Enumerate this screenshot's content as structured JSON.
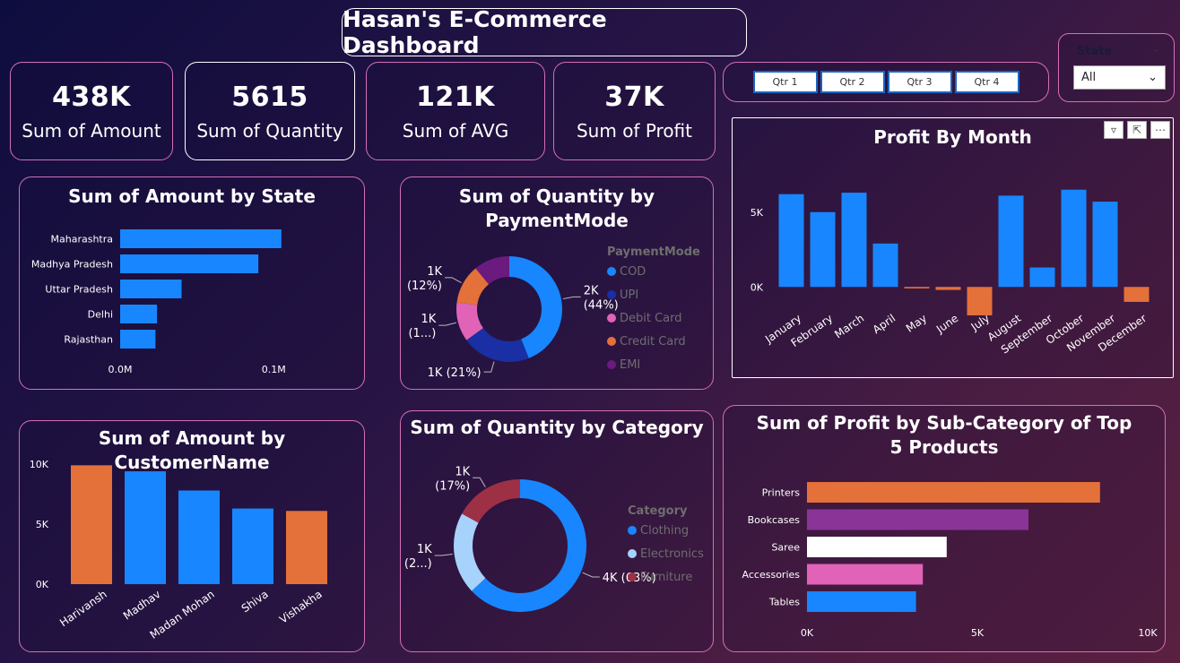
{
  "dashboard_title": "Hasan's E-Commerce Dashboard",
  "kpis": [
    {
      "value": "438K",
      "label": "Sum of Amount"
    },
    {
      "value": "5615",
      "label": "Sum of Quantity"
    },
    {
      "value": "121K",
      "label": "Sum of AVG"
    },
    {
      "value": "37K",
      "label": "Sum of Profit"
    }
  ],
  "quarters": [
    "Qtr 1",
    "Qtr 2",
    "Qtr 3",
    "Qtr 4"
  ],
  "state_slicer": {
    "label": "State",
    "selected": "All"
  },
  "colors": {
    "blue": "#1886ff",
    "orange": "#e4703a",
    "pink": "#e063b8",
    "dark_blue": "#1a2fa3",
    "purple": "#7a2b8f",
    "light_blue": "#a6d2fb",
    "dark_red": "#9e3045",
    "violet": "#8a3498",
    "white": "#ffffff"
  },
  "chart_data": [
    {
      "id": "amount_by_state",
      "type": "bar",
      "orientation": "horizontal",
      "title": "Sum of Amount by State",
      "categories": [
        "Maharashtra",
        "Madhya Pradesh",
        "Uttar Pradesh",
        "Delhi",
        "Rajasthan"
      ],
      "values": [
        0.105,
        0.09,
        0.04,
        0.024,
        0.023
      ],
      "xlim": [
        0,
        0.16
      ],
      "x_ticks": [
        {
          "v": 0,
          "label": "0.0M"
        },
        {
          "v": 0.1,
          "label": "0.1M"
        }
      ]
    },
    {
      "id": "quantity_by_paymentmode",
      "type": "pie",
      "donut": true,
      "title": "Sum of Quantity by PaymentMode",
      "legend_title": "PaymentMode",
      "labels": [
        "COD",
        "UPI",
        "Debit Card",
        "Credit Card",
        "EMI"
      ],
      "values": [
        44,
        21,
        12,
        12,
        11
      ],
      "colors": [
        "#1886ff",
        "#1a2fa3",
        "#e063b8",
        "#e4703a",
        "#6b1a80"
      ],
      "data_labels": [
        {
          "line1": "2K",
          "line2": "(44%)"
        },
        {
          "line1": "1K (21%)",
          "line2": ""
        },
        {
          "line1": "1K",
          "line2": "(1...)"
        },
        {
          "line1": "1K",
          "line2": "(12%)"
        },
        {
          "line1": "",
          "line2": ""
        }
      ]
    },
    {
      "id": "profit_by_month",
      "type": "bar",
      "title": "Profit By Month",
      "categories": [
        "January",
        "February",
        "March",
        "April",
        "May",
        "June",
        "July",
        "August",
        "September",
        "October",
        "November",
        "December"
      ],
      "values": [
        6200,
        5000,
        6300,
        2900,
        -100,
        -200,
        -1900,
        6100,
        1300,
        6500,
        5700,
        -1000
      ],
      "ylim": [
        -2500,
        7800
      ],
      "y_ticks": [
        {
          "v": 0,
          "label": "0K"
        },
        {
          "v": 5000,
          "label": "5K"
        }
      ],
      "colors": [
        "#1886ff",
        "#1886ff",
        "#1886ff",
        "#1886ff",
        "#e4703a",
        "#e4703a",
        "#e4703a",
        "#1886ff",
        "#1886ff",
        "#1886ff",
        "#1886ff",
        "#e4703a"
      ]
    },
    {
      "id": "amount_by_customer",
      "type": "bar",
      "title": "Sum of Amount by CustomerName",
      "categories": [
        "Harivansh",
        "Madhav",
        "Madan Mohan",
        "Shiva",
        "Vishakha"
      ],
      "values": [
        9900,
        9400,
        7800,
        6300,
        6100
      ],
      "ylim": [
        0,
        10000
      ],
      "y_ticks": [
        {
          "v": 0,
          "label": "0K"
        },
        {
          "v": 5000,
          "label": "5K"
        },
        {
          "v": 10000,
          "label": "10K"
        }
      ],
      "colors": [
        "#e4703a",
        "#1886ff",
        "#1886ff",
        "#1886ff",
        "#e4703a"
      ]
    },
    {
      "id": "quantity_by_category",
      "type": "pie",
      "donut": true,
      "title": "Sum of Quantity by Category",
      "legend_title": "Category",
      "labels": [
        "Clothing",
        "Electronics",
        "Furniture"
      ],
      "values": [
        63,
        20,
        17
      ],
      "colors": [
        "#1886ff",
        "#a6d2fb",
        "#9e3045"
      ],
      "data_labels": [
        {
          "line1": "4K (63%)",
          "line2": ""
        },
        {
          "line1": "1K",
          "line2": "(2...)"
        },
        {
          "line1": "1K",
          "line2": "(17%)"
        }
      ]
    },
    {
      "id": "profit_by_subcategory",
      "type": "bar",
      "orientation": "horizontal",
      "title": "Sum of Profit by Sub-Category of Top 5 Products",
      "categories": [
        "Printers",
        "Bookcases",
        "Saree",
        "Accessories",
        "Tables"
      ],
      "values": [
        8600,
        6500,
        4100,
        3400,
        3200
      ],
      "xlim": [
        0,
        10000
      ],
      "x_ticks": [
        {
          "v": 0,
          "label": "0K"
        },
        {
          "v": 5000,
          "label": "5K"
        },
        {
          "v": 10000,
          "label": "10K"
        }
      ],
      "colors": [
        "#e4703a",
        "#8a3498",
        "#ffffff",
        "#e063b8",
        "#1886ff"
      ]
    }
  ]
}
